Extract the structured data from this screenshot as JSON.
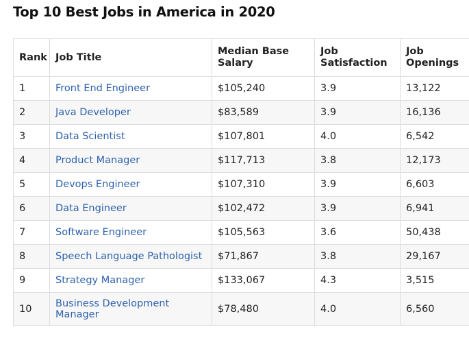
{
  "title": "Top 10 Best Jobs in America in 2020",
  "columns": {
    "rank": "Rank",
    "job_title": "Job Title",
    "salary": "Median Base Salary",
    "satisfaction": "Job Satisfaction",
    "openings": "Job Openings"
  },
  "rows": [
    {
      "rank": "1",
      "title": "Front End Engineer",
      "salary": "$105,240",
      "satisfaction": "3.9",
      "openings": "13,122"
    },
    {
      "rank": "2",
      "title": "Java Developer",
      "salary": "$83,589",
      "satisfaction": "3.9",
      "openings": "16,136"
    },
    {
      "rank": "3",
      "title": "Data Scientist",
      "salary": "$107,801",
      "satisfaction": "4.0",
      "openings": "6,542"
    },
    {
      "rank": "4",
      "title": "Product Manager",
      "salary": "$117,713",
      "satisfaction": "3.8",
      "openings": "12,173"
    },
    {
      "rank": "5",
      "title": "Devops Engineer",
      "salary": "$107,310",
      "satisfaction": "3.9",
      "openings": "6,603"
    },
    {
      "rank": "6",
      "title": "Data Engineer",
      "salary": "$102,472",
      "satisfaction": "3.9",
      "openings": "6,941"
    },
    {
      "rank": "7",
      "title": "Software Engineer",
      "salary": "$105,563",
      "satisfaction": "3.6",
      "openings": "50,438"
    },
    {
      "rank": "8",
      "title": "Speech Language Pathologist",
      "salary": "$71,867",
      "satisfaction": "3.8",
      "openings": "29,167"
    },
    {
      "rank": "9",
      "title": "Strategy Manager",
      "salary": "$133,067",
      "satisfaction": "4.3",
      "openings": "3,515"
    },
    {
      "rank": "10",
      "title": "Business Development Manager",
      "salary": "$78,480",
      "satisfaction": "4.0",
      "openings": "6,560"
    }
  ]
}
